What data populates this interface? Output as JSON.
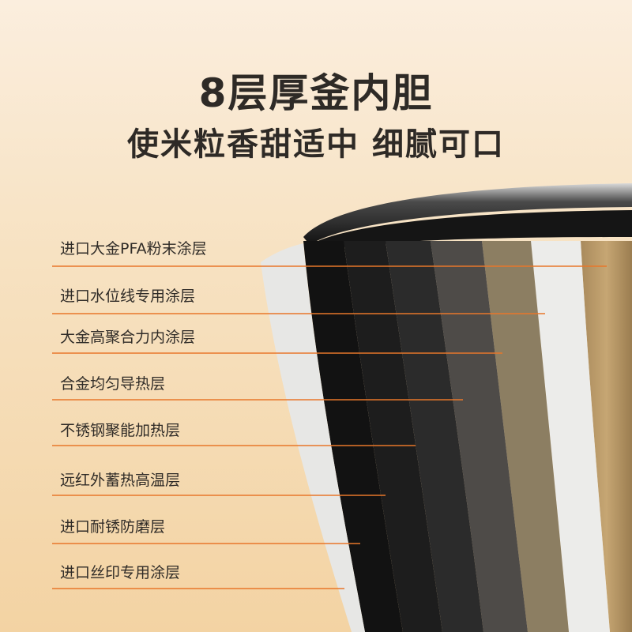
{
  "headline": {
    "title": "8层厚釜内胆",
    "subtitle": "使米粒香甜适中 细腻可口"
  },
  "layers": [
    {
      "label": "进口大金PFA粉末涂层"
    },
    {
      "label": "进口水位线专用涂层"
    },
    {
      "label": "大金高聚合力内涂层"
    },
    {
      "label": "合金均匀导热层"
    },
    {
      "label": "不锈钢聚能加热层"
    },
    {
      "label": "远红外蓄热高温层"
    },
    {
      "label": "进口耐锈防磨层"
    },
    {
      "label": "进口丝印专用涂层"
    }
  ],
  "colors": {
    "leader_line": "#e8772a",
    "text": "#2e2a26"
  }
}
